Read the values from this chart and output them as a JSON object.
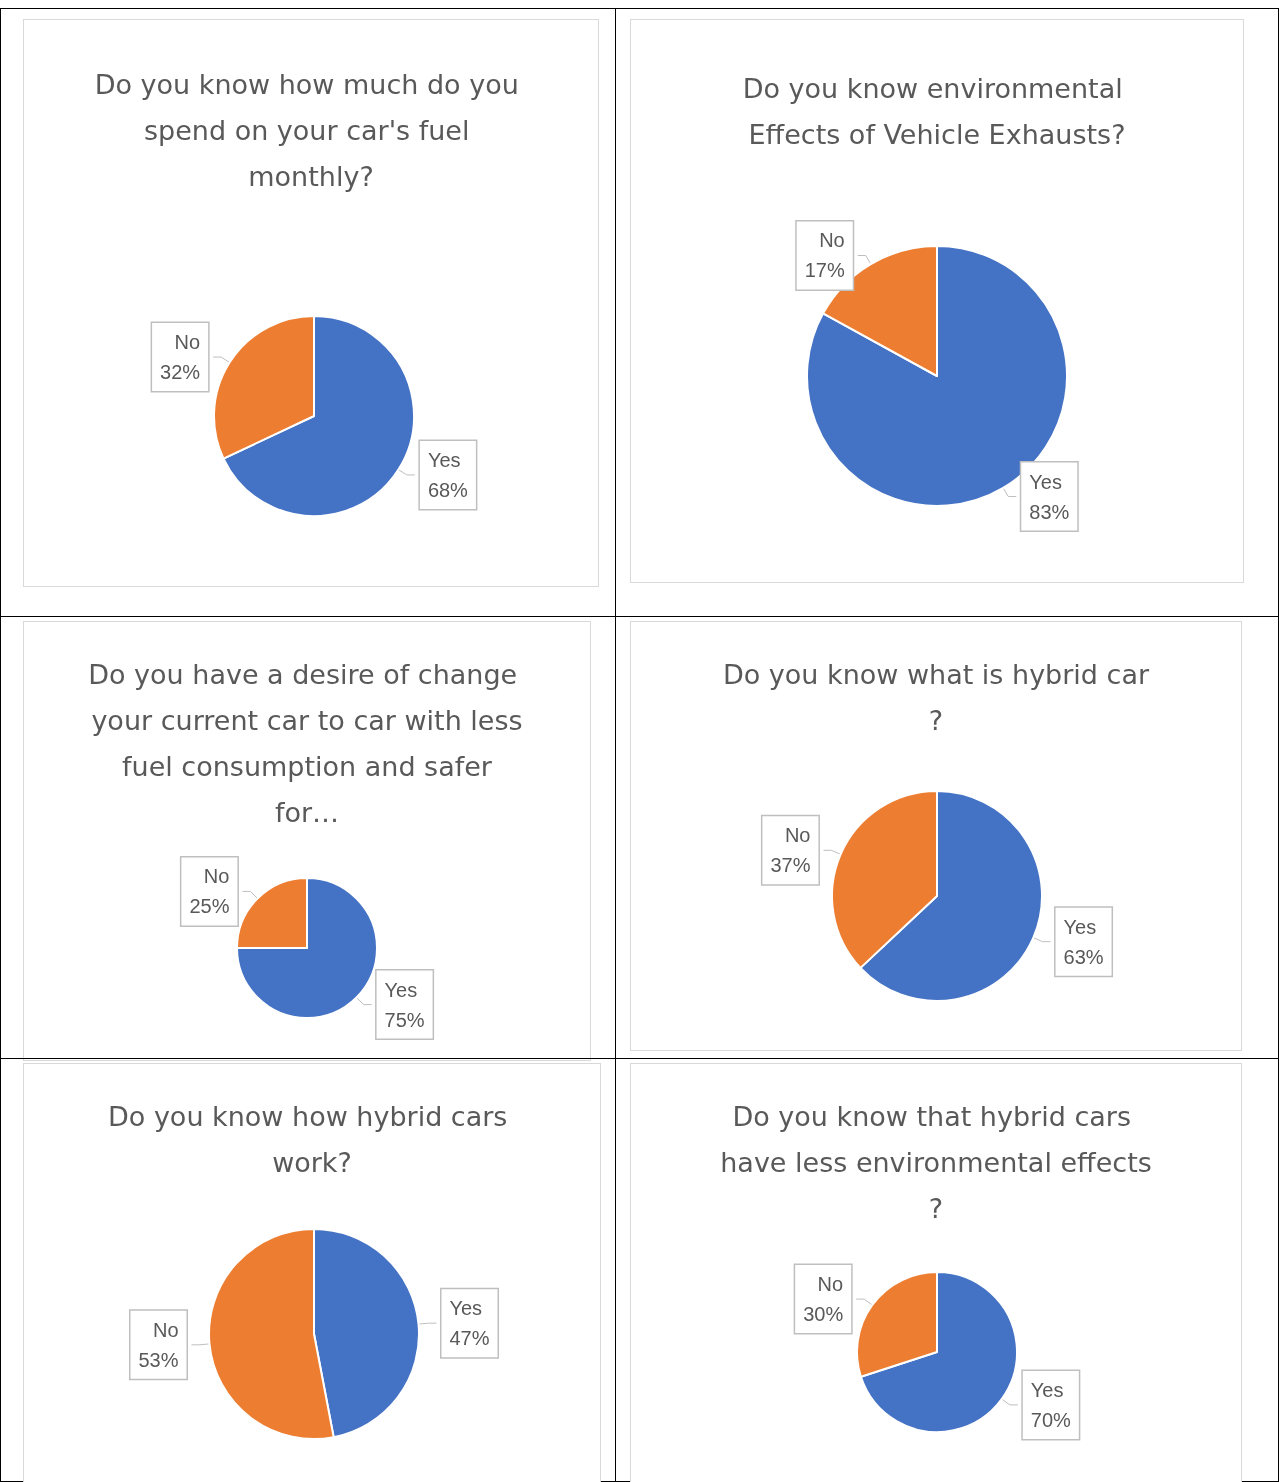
{
  "chart_data": [
    {
      "type": "pie",
      "title": "Do you know how much do you spend on your car's fuel monthly?",
      "categories": [
        "Yes",
        "No"
      ],
      "values": [
        68,
        32
      ],
      "colors": [
        "#4472c4",
        "#ed7d31"
      ],
      "value_labels": [
        "68%",
        "32%"
      ]
    },
    {
      "type": "pie",
      "title": "Do you know environmental Effects of Vehicle Exhausts?",
      "categories": [
        "Yes",
        "No"
      ],
      "values": [
        83,
        17
      ],
      "colors": [
        "#4472c4",
        "#ed7d31"
      ],
      "value_labels": [
        "83%",
        "17%"
      ]
    },
    {
      "type": "pie",
      "title": "Do you have a desire of change your current car to car with less fuel consumption and safer for…",
      "categories": [
        "Yes",
        "No"
      ],
      "values": [
        75,
        25
      ],
      "colors": [
        "#4472c4",
        "#ed7d31"
      ],
      "value_labels": [
        "75%",
        "25%"
      ]
    },
    {
      "type": "pie",
      "title": "Do you know what is hybrid car?",
      "categories": [
        "Yes",
        "No"
      ],
      "values": [
        63,
        37
      ],
      "colors": [
        "#4472c4",
        "#ed7d31"
      ],
      "value_labels": [
        "63%",
        "37%"
      ]
    },
    {
      "type": "pie",
      "title": "Do you know how hybrid cars work?",
      "categories": [
        "Yes",
        "No"
      ],
      "values": [
        47,
        53
      ],
      "colors": [
        "#4472c4",
        "#ed7d31"
      ],
      "value_labels": [
        "47%",
        "53%"
      ]
    },
    {
      "type": "pie",
      "title": "Do you know that hybrid cars have less environmental effects?",
      "categories": [
        "Yes",
        "No"
      ],
      "values": [
        70,
        30
      ],
      "colors": [
        "#4472c4",
        "#ed7d31"
      ],
      "value_labels": [
        "70%",
        "30%"
      ]
    }
  ]
}
